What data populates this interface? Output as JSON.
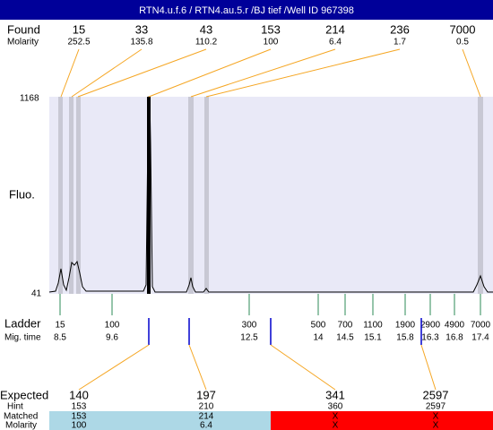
{
  "header": {
    "title": "RTN4.u.f.6 / RTN4.au.5.r /BJ tief /Well ID 967398"
  },
  "found": {
    "label": "Found",
    "sublabel": "Molarity",
    "peaks": [
      {
        "size": "15",
        "molarity": "252.5"
      },
      {
        "size": "33",
        "molarity": "135.8"
      },
      {
        "size": "43",
        "molarity": "110.2"
      },
      {
        "size": "153",
        "molarity": "100"
      },
      {
        "size": "214",
        "molarity": "6.4"
      },
      {
        "size": "236",
        "molarity": "1.7"
      },
      {
        "size": "7000",
        "molarity": "0.5"
      }
    ]
  },
  "y_axis": {
    "label": "Fluo.",
    "max": "1168",
    "min": "41"
  },
  "ladder": {
    "label": "Ladder",
    "sublabel": "Mig. time",
    "peaks": [
      {
        "size": "15",
        "time": "8.5"
      },
      {
        "size": "100",
        "time": "9.6"
      },
      {
        "size": "300",
        "time": "12.5"
      },
      {
        "size": "500",
        "time": "14"
      },
      {
        "size": "700",
        "time": "14.5"
      },
      {
        "size": "1100",
        "time": "15.1"
      },
      {
        "size": "1900",
        "time": "15.8"
      },
      {
        "size": "2900",
        "time": "16.3"
      },
      {
        "size": "4900",
        "time": "16.8"
      },
      {
        "size": "7000",
        "time": "17.4"
      }
    ]
  },
  "expected": {
    "label": "Expected",
    "hint_label": "Hint",
    "matched_label": "Matched",
    "molarity_label": "Molarity",
    "rows": [
      {
        "expected": "140",
        "hint": "153",
        "matched": "153",
        "molarity": "100"
      },
      {
        "expected": "197",
        "hint": "210",
        "matched": "214",
        "molarity": "6.4"
      },
      {
        "expected": "341",
        "hint": "360",
        "matched": "X",
        "molarity": "X"
      },
      {
        "expected": "2597",
        "hint": "2597",
        "matched": "X",
        "molarity": "X"
      }
    ]
  }
}
